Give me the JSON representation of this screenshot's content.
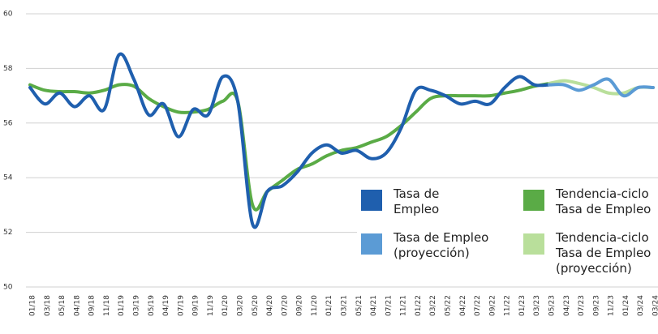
{
  "chart_data": {
    "type": "line",
    "categories": [
      "01/18",
      "03/18",
      "05/18",
      "04/18",
      "09/18",
      "11/18",
      "01/19",
      "03/19",
      "05/19",
      "04/19",
      "07/19",
      "09/19",
      "11/19",
      "01/20",
      "03/20",
      "05/20",
      "04/20",
      "07/20",
      "09/20",
      "11/20",
      "01/21",
      "03/21",
      "05/21",
      "04/21",
      "07/21",
      "11/21",
      "01/22",
      "03/22",
      "05/22",
      "04/22",
      "07/22",
      "09/22",
      "11/22",
      "01/23",
      "03/23",
      "05/23",
      "04/23",
      "07/23",
      "09/23",
      "11/23",
      "01/24",
      "03/24",
      "03/24"
    ],
    "series": [
      {
        "name": "Tasa de Empleo",
        "color": "#1f5fae",
        "values": [
          57.3,
          56.7,
          57.1,
          56.6,
          57.0,
          56.5,
          58.5,
          57.6,
          56.3,
          56.7,
          55.5,
          56.5,
          56.3,
          57.7,
          56.8,
          52.3,
          53.5,
          53.7,
          54.2,
          54.9,
          55.2,
          54.9,
          55.0,
          54.7,
          54.9,
          55.8,
          57.2,
          57.2,
          57.0,
          56.7,
          56.8,
          56.7,
          57.3,
          57.7,
          57.4,
          57.4,
          null,
          null,
          null,
          null,
          null,
          null,
          null
        ]
      },
      {
        "name": "Tasa de Empleo (proyección)",
        "color": "#5b9bd5",
        "values": [
          null,
          null,
          null,
          null,
          null,
          null,
          null,
          null,
          null,
          null,
          null,
          null,
          null,
          null,
          null,
          null,
          null,
          null,
          null,
          null,
          null,
          null,
          null,
          null,
          null,
          null,
          null,
          null,
          null,
          null,
          null,
          null,
          null,
          null,
          null,
          57.4,
          57.4,
          57.2,
          57.4,
          57.6,
          57.0,
          57.3,
          57.3
        ]
      },
      {
        "name": "Tendencia-ciclo Tasa de Empleo",
        "color": "#5aab46",
        "values": [
          57.4,
          57.2,
          57.15,
          57.15,
          57.1,
          57.2,
          57.4,
          57.35,
          56.9,
          56.6,
          56.4,
          56.4,
          56.5,
          56.8,
          56.8,
          53.0,
          53.5,
          53.9,
          54.3,
          54.5,
          54.8,
          55.0,
          55.1,
          55.3,
          55.5,
          55.9,
          56.4,
          56.9,
          57.0,
          57.0,
          57.0,
          57.0,
          57.1,
          57.2,
          57.35,
          57.45,
          null,
          null,
          null,
          null,
          null,
          null,
          null
        ]
      },
      {
        "name": "Tendencia-ciclo Tasa de Empleo (proyección)",
        "color": "#b9df9b",
        "values": [
          null,
          null,
          null,
          null,
          null,
          null,
          null,
          null,
          null,
          null,
          null,
          null,
          null,
          null,
          null,
          null,
          null,
          null,
          null,
          null,
          null,
          null,
          null,
          null,
          null,
          null,
          null,
          null,
          null,
          null,
          null,
          null,
          null,
          null,
          null,
          57.45,
          57.55,
          57.45,
          57.3,
          57.1,
          57.1,
          57.3,
          57.3
        ]
      }
    ],
    "ylim": [
      50,
      60
    ],
    "yticks": [
      50,
      52,
      54,
      56,
      58,
      60
    ],
    "grid": true
  }
}
